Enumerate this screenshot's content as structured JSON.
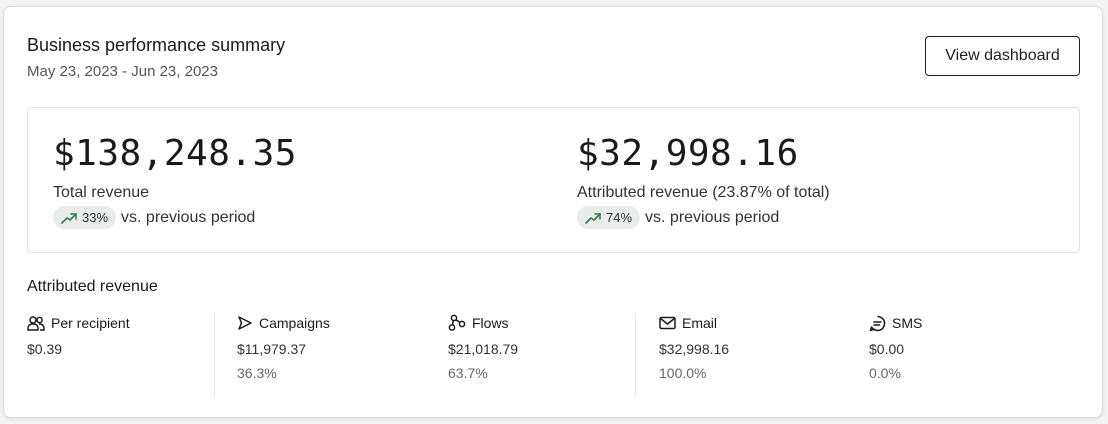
{
  "header": {
    "title": "Business performance summary",
    "date_range": "May 23, 2023 - Jun 23, 2023",
    "button_label": "View dashboard"
  },
  "summary": {
    "total": {
      "value": "$138,248.35",
      "label": "Total revenue",
      "change": "33%",
      "comparison": "vs. previous period"
    },
    "attributed": {
      "value": "$32,998.16",
      "label": "Attributed revenue (23.87% of total)",
      "change": "74%",
      "comparison": "vs. previous period"
    },
    "trend_icon": "trending-up-icon",
    "trend_color": "#2e7d4f"
  },
  "attributed_section": {
    "title": "Attributed revenue",
    "columns": [
      {
        "label": "Per recipient",
        "icon": "users-icon",
        "value": "$0.39",
        "percent": ""
      },
      {
        "label": "Campaigns",
        "icon": "send-icon",
        "value": "$11,979.37",
        "percent": "36.3%"
      },
      {
        "label": "Flows",
        "icon": "flows-icon",
        "value": "$21,018.79",
        "percent": "63.7%"
      },
      {
        "label": "Email",
        "icon": "email-icon",
        "value": "$32,998.16",
        "percent": "100.0%"
      },
      {
        "label": "SMS",
        "icon": "sms-icon",
        "value": "$0.00",
        "percent": "0.0%"
      }
    ]
  }
}
